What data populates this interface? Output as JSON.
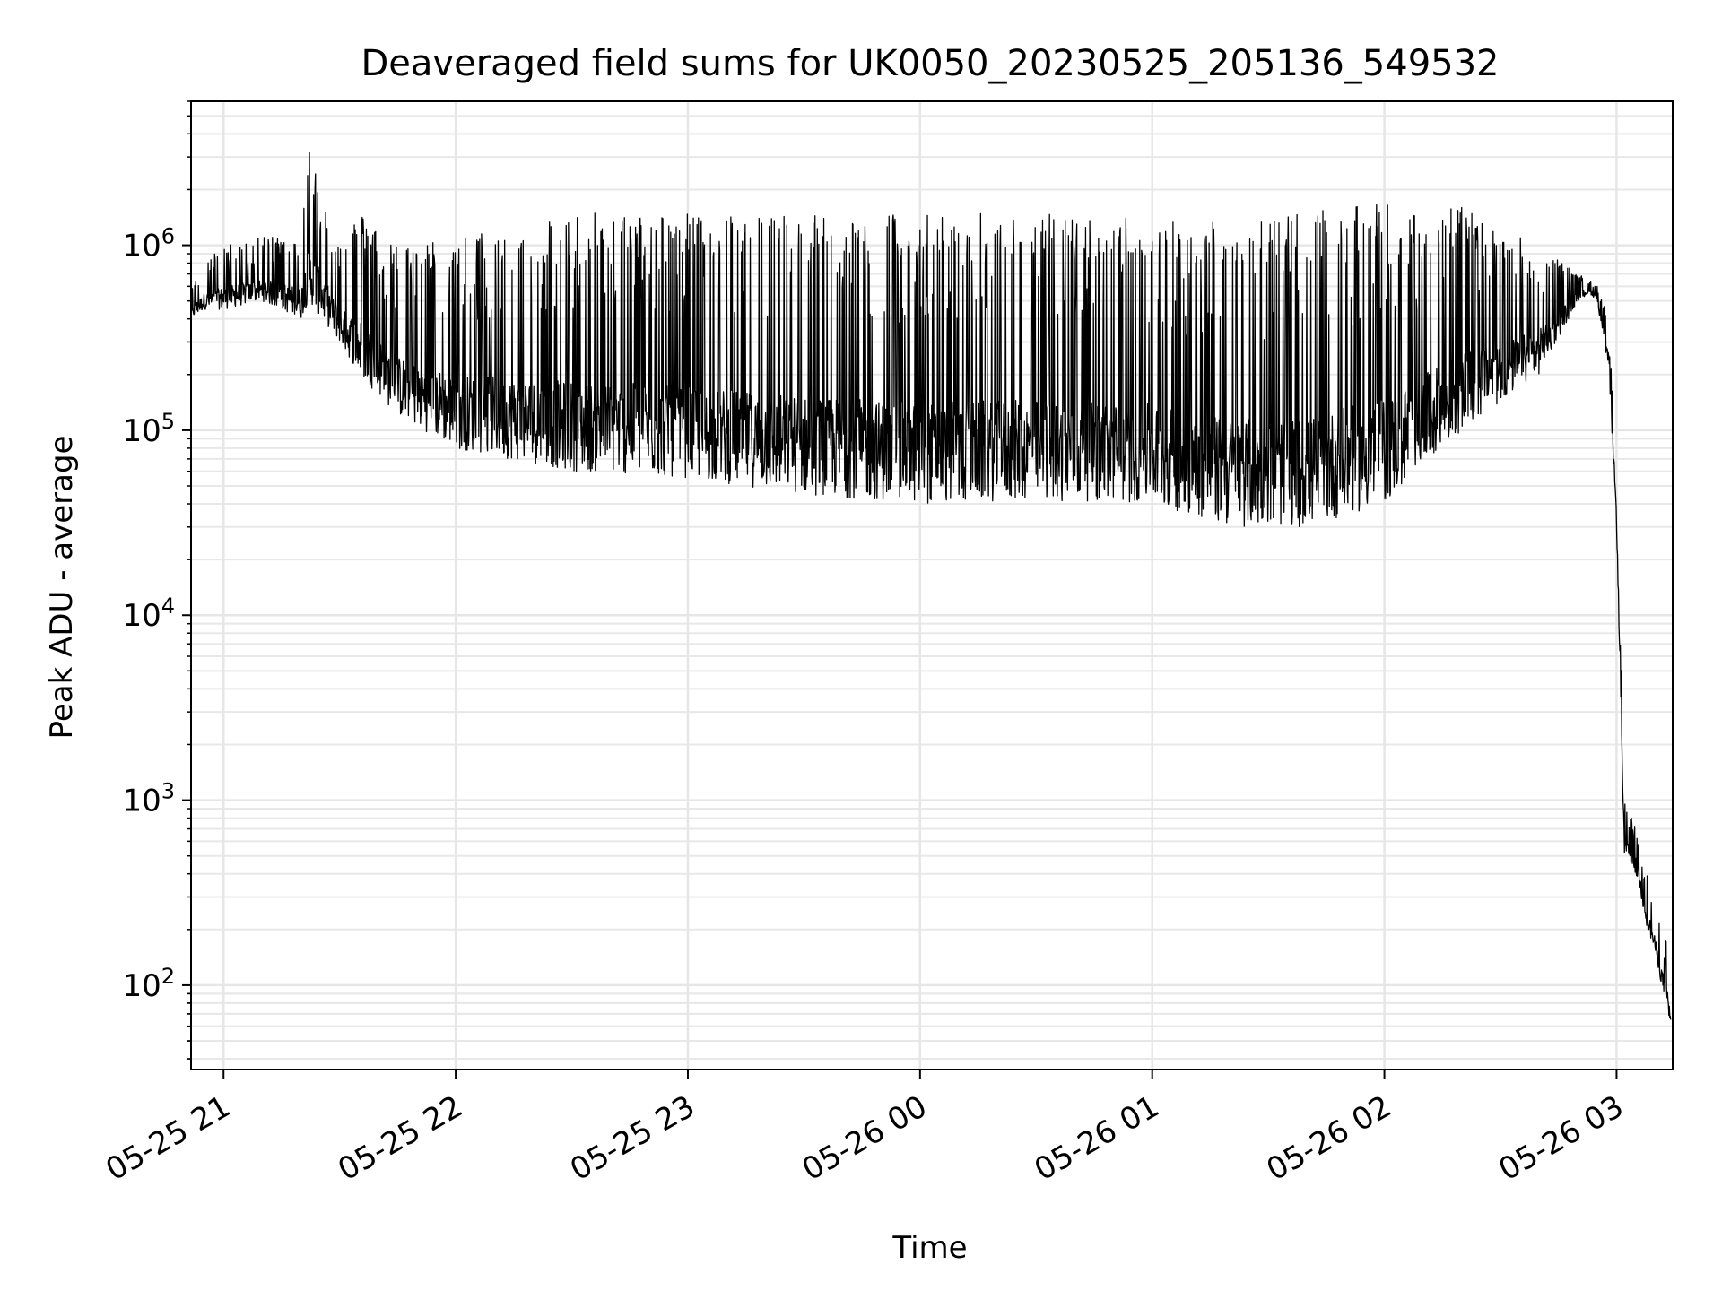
{
  "chart_data": {
    "type": "line",
    "title": "Deaveraged field sums for UK0050_20230525_205136_549532",
    "xlabel": "Time",
    "ylabel": "Peak ADU - average",
    "yscale": "log",
    "ylim": [
      35,
      6000000
    ],
    "xlim": [
      "2023-05-25 20:51:36",
      "2023-05-26 03:14:30"
    ],
    "grid": true,
    "grid_minor": true,
    "line_color": "#000000",
    "x_ticks": [
      {
        "value": "2023-05-25 21:00",
        "label": "05-25 21"
      },
      {
        "value": "2023-05-25 22:00",
        "label": "05-25 22"
      },
      {
        "value": "2023-05-25 23:00",
        "label": "05-25 23"
      },
      {
        "value": "2023-05-26 00:00",
        "label": "05-26 00"
      },
      {
        "value": "2023-05-26 01:00",
        "label": "05-26 01"
      },
      {
        "value": "2023-05-26 02:00",
        "label": "05-26 02"
      },
      {
        "value": "2023-05-26 03:00",
        "label": "05-26 03"
      }
    ],
    "y_ticks": [
      {
        "value": 100,
        "base": "10",
        "exp": "2"
      },
      {
        "value": 1000,
        "base": "10",
        "exp": "3"
      },
      {
        "value": 10000,
        "base": "10",
        "exp": "4"
      },
      {
        "value": 100000,
        "base": "10",
        "exp": "5"
      },
      {
        "value": 1000000,
        "base": "10",
        "exp": "6"
      }
    ],
    "series": [
      {
        "x": [
          "2023-05-25 20:51:36",
          "2023-05-25 20:55",
          "2023-05-25 21:00",
          "2023-05-25 21:10",
          "2023-05-25 21:20",
          "2023-05-25 21:22",
          "2023-05-25 21:30",
          "2023-05-25 21:35",
          "2023-05-25 21:45",
          "2023-05-25 22:00",
          "2023-05-25 22:30",
          "2023-05-25 23:00",
          "2023-05-25 23:30",
          "2023-05-26 00:00",
          "2023-05-26 00:30",
          "2023-05-26 01:00",
          "2023-05-26 01:20",
          "2023-05-26 01:40",
          "2023-05-26 02:00",
          "2023-05-26 02:20",
          "2023-05-26 02:40",
          "2023-05-26 02:50",
          "2023-05-26 02:53",
          "2023-05-26 02:55",
          "2023-05-26 02:58",
          "2023-05-26 03:00",
          "2023-05-26 03:02",
          "2023-05-26 03:05",
          "2023-05-26 03:08",
          "2023-05-26 03:10",
          "2023-05-26 03:14"
        ],
        "y_high": [
          600000,
          800000,
          1000000,
          1100000,
          1200000,
          3500000,
          1000000,
          1500000,
          1000000,
          1100000,
          1500000,
          1500000,
          1500000,
          1500000,
          1500000,
          1400000,
          1400000,
          1500000,
          1700000,
          1600000,
          1000000,
          700000,
          650000,
          600000,
          400000,
          60000,
          1000,
          700,
          400,
          250,
          150
        ],
        "y_low": [
          400000,
          450000,
          450000,
          500000,
          400000,
          500000,
          300000,
          200000,
          120000,
          80000,
          60000,
          55000,
          45000,
          40000,
          42000,
          40000,
          30000,
          30000,
          40000,
          100000,
          200000,
          500000,
          550000,
          500000,
          200000,
          30000,
          500,
          400,
          200,
          150,
          55
        ]
      }
    ]
  }
}
